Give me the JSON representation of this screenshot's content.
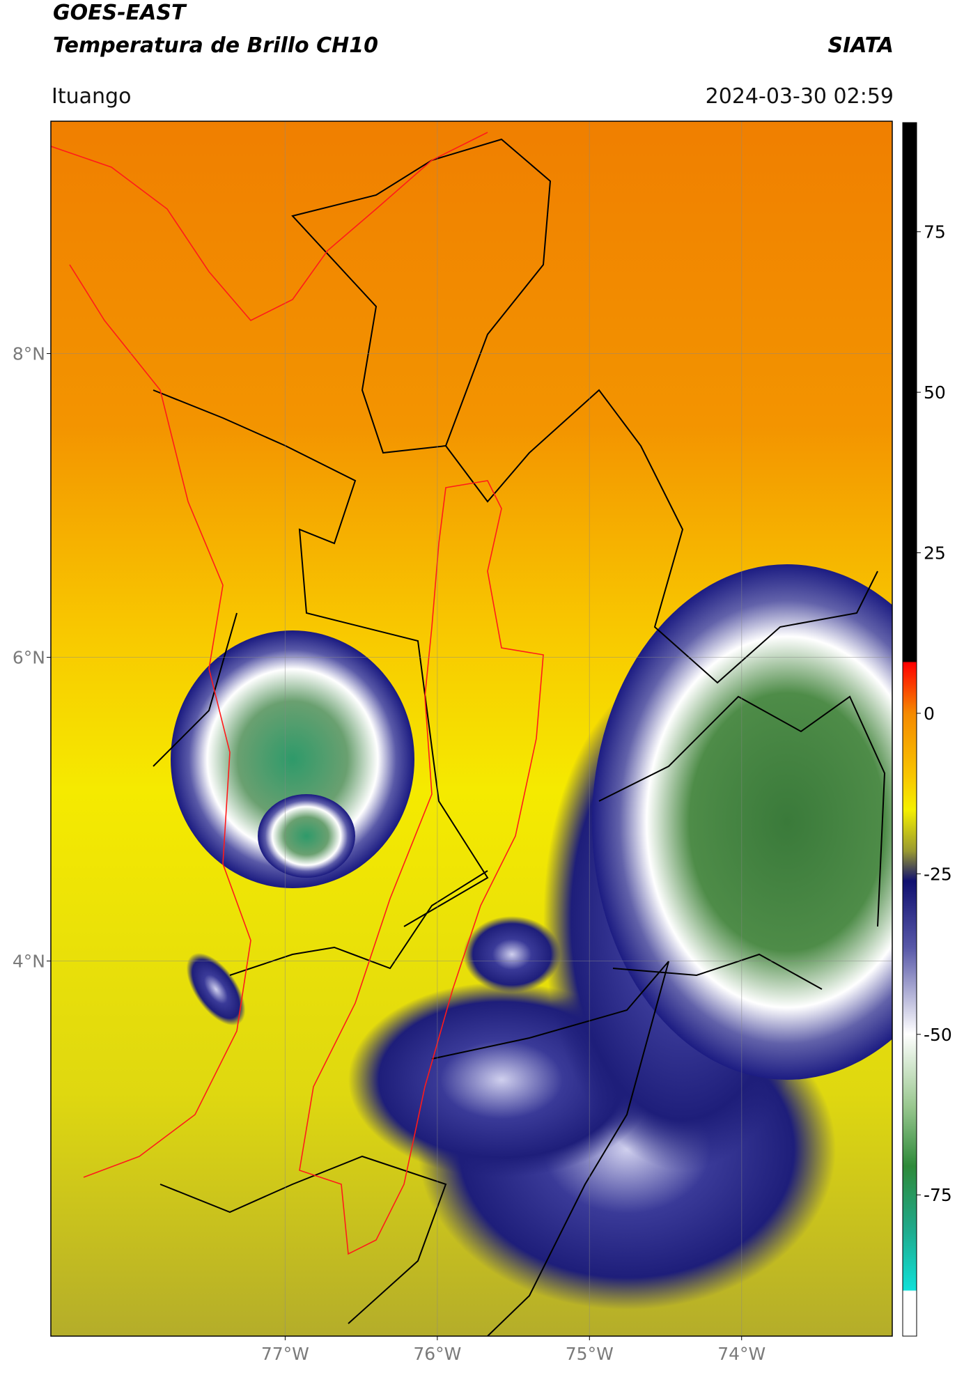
{
  "header": {
    "title": "GOES-EAST",
    "subtitle": "Temperatura de Brillo CH10",
    "source": "SIATA",
    "location": "Ituango",
    "datetime": "2024-03-30 02:59"
  },
  "chart_data": {
    "type": "map",
    "xlim": [
      -78.54,
      -73.01
    ],
    "ylim": [
      1.53,
      9.53
    ],
    "xticks": [
      {
        "value": -77,
        "label": "77°W"
      },
      {
        "value": -76,
        "label": "76°W"
      },
      {
        "value": -75,
        "label": "75°W"
      },
      {
        "value": -74,
        "label": "74°W"
      }
    ],
    "yticks": [
      {
        "value": 4,
        "label": "4°N"
      },
      {
        "value": 6,
        "label": "6°N"
      },
      {
        "value": 8,
        "label": "8°N"
      }
    ],
    "grid": true,
    "colorbar": {
      "lim": [
        -97,
        92
      ],
      "ticks": [
        -75,
        -50,
        -25,
        0,
        25,
        50,
        75
      ]
    }
  }
}
